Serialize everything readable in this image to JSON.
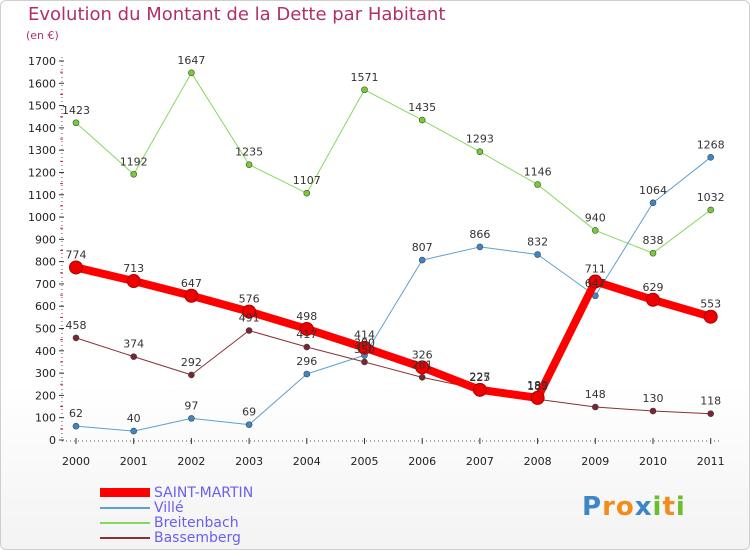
{
  "chart_data": {
    "type": "line",
    "title": "Evolution du Montant de la Dette par Habitant",
    "ylabel": "(en €)",
    "xlabel": "",
    "categories": [
      "2000",
      "2001",
      "2002",
      "2003",
      "2004",
      "2005",
      "2006",
      "2007",
      "2008",
      "2009",
      "2010",
      "2011"
    ],
    "yticks": [
      0,
      100,
      200,
      300,
      400,
      500,
      600,
      700,
      800,
      900,
      1000,
      1100,
      1200,
      1300,
      1400,
      1500,
      1600,
      1700
    ],
    "ylim": [
      0,
      1700
    ],
    "grid": false,
    "legend_position": "bottom-left",
    "series": [
      {
        "name": "Breitenbach",
        "color": "#88d860",
        "marker": "#77cc33",
        "width": 1,
        "values": [
          1423,
          1192,
          1647,
          1235,
          1107,
          1571,
          1435,
          1293,
          1146,
          940,
          838,
          1032
        ]
      },
      {
        "name": "Villé",
        "color": "#5f9fd0",
        "marker": "#3d87c7",
        "width": 1,
        "values": [
          62,
          40,
          97,
          69,
          296,
          380,
          807,
          866,
          832,
          647,
          1064,
          1268
        ]
      },
      {
        "name": "Bassemberg",
        "color": "#8a3035",
        "marker": "#7a2530",
        "width": 1,
        "values": [
          458,
          374,
          292,
          491,
          417,
          350,
          281,
          227,
          183,
          148,
          130,
          118
        ]
      },
      {
        "name": "SAINT-MARTIN",
        "color": "#ff0000",
        "marker": "#ee0000",
        "width": 8,
        "values": [
          774,
          713,
          647,
          576,
          498,
          414,
          326,
          225,
          189,
          711,
          629,
          553
        ]
      }
    ],
    "data_labels": [
      {
        "series": "Breitenbach",
        "labels": [
          "1423",
          "1192",
          "1647",
          "1235",
          "1107",
          "1571",
          "1435",
          "1293",
          "1146",
          "940",
          "838",
          "1032"
        ]
      },
      {
        "series": "Villé",
        "labels": [
          "62",
          "40",
          "97",
          "69",
          "296",
          "380",
          "807",
          "866",
          "832",
          "647",
          "1064",
          "1268"
        ]
      },
      {
        "series": "Bassemberg",
        "labels": [
          "458",
          "374",
          "292",
          "491",
          "417",
          "350",
          "281",
          "227",
          "183",
          "148",
          "130",
          "118"
        ]
      },
      {
        "series": "SAINT-MARTIN",
        "labels": [
          "774",
          "713",
          "647",
          "576",
          "498",
          "414",
          "326",
          "225",
          "189",
          "711",
          "629",
          "553"
        ]
      }
    ]
  },
  "legend": {
    "items": [
      {
        "label": "SAINT-MARTIN",
        "color": "#ff0000",
        "thick": true
      },
      {
        "label": "Villé",
        "color": "#5f9fd0",
        "thick": false
      },
      {
        "label": "Breitenbach",
        "color": "#88d860",
        "thick": false
      },
      {
        "label": "Bassemberg",
        "color": "#8a3035",
        "thick": false
      }
    ]
  },
  "logo": {
    "text": "Proxiti",
    "letters": [
      {
        "ch": "P",
        "color": "#3d87c7"
      },
      {
        "ch": "r",
        "color": "#f28c1c"
      },
      {
        "ch": "o",
        "color": "#f28c1c"
      },
      {
        "ch": "x",
        "color": "#3d87c7"
      },
      {
        "ch": "i",
        "color": "#6cbf2a"
      },
      {
        "ch": "t",
        "color": "#f28c1c"
      },
      {
        "ch": "i",
        "color": "#6cbf2a"
      }
    ]
  }
}
